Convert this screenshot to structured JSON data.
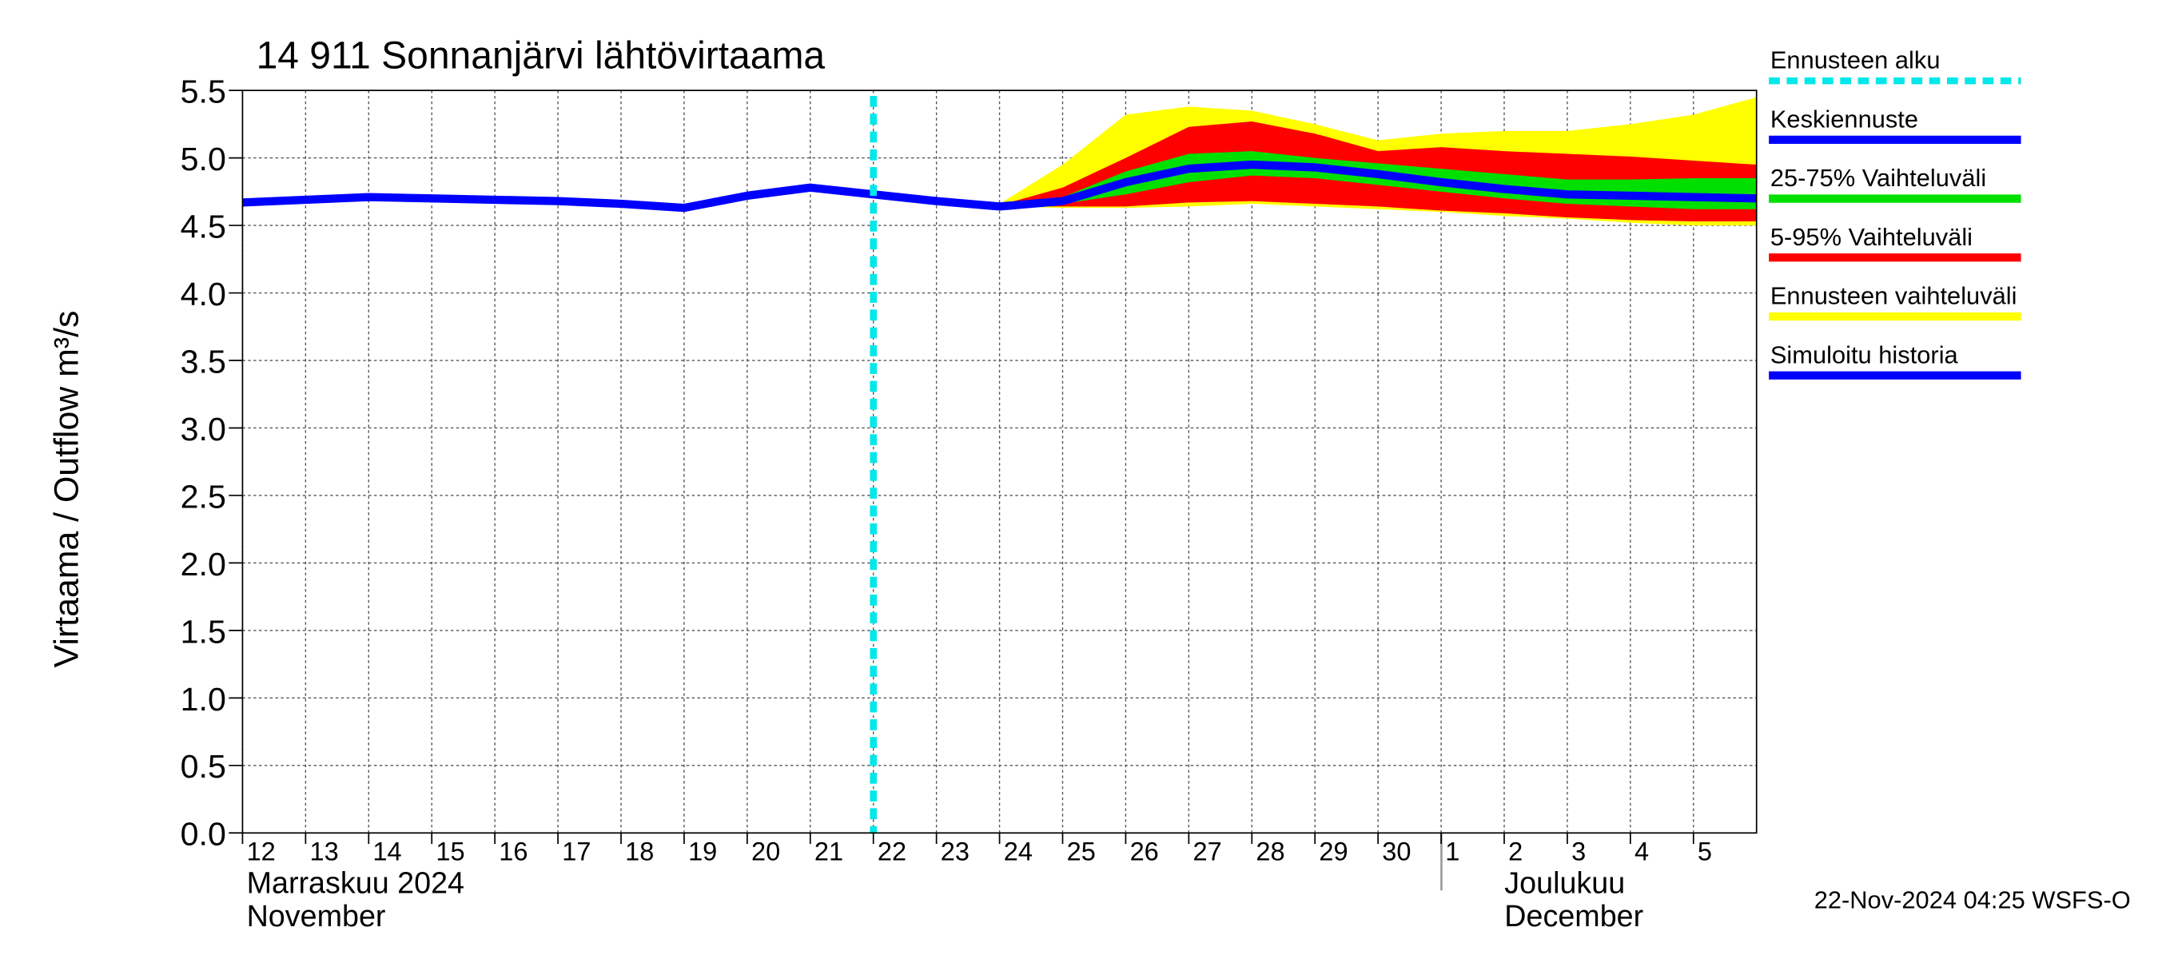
{
  "chart_data": {
    "type": "band-line",
    "title": "14 911 Sonnanjärvi lähtövirtaama",
    "y_label": "Virtaama / Outflow    m³/s",
    "x": [
      "2024-11-12",
      "2024-11-13",
      "2024-11-14",
      "2024-11-15",
      "2024-11-16",
      "2024-11-17",
      "2024-11-18",
      "2024-11-19",
      "2024-11-20",
      "2024-11-21",
      "2024-11-22",
      "2024-11-23",
      "2024-11-24",
      "2024-11-25",
      "2024-11-26",
      "2024-11-27",
      "2024-11-28",
      "2024-11-29",
      "2024-11-30",
      "2024-12-01",
      "2024-12-02",
      "2024-12-03",
      "2024-12-04",
      "2024-12-05",
      "2024-12-06"
    ],
    "xlim": [
      "2024-11-12",
      "2024-12-06"
    ],
    "xticks": [
      {
        "value": "2024-11-12",
        "label": "12"
      },
      {
        "value": "2024-11-13",
        "label": "13"
      },
      {
        "value": "2024-11-14",
        "label": "14"
      },
      {
        "value": "2024-11-15",
        "label": "15"
      },
      {
        "value": "2024-11-16",
        "label": "16"
      },
      {
        "value": "2024-11-17",
        "label": "17"
      },
      {
        "value": "2024-11-18",
        "label": "18"
      },
      {
        "value": "2024-11-19",
        "label": "19"
      },
      {
        "value": "2024-11-20",
        "label": "20"
      },
      {
        "value": "2024-11-21",
        "label": "21"
      },
      {
        "value": "2024-11-22",
        "label": "22"
      },
      {
        "value": "2024-11-23",
        "label": "23"
      },
      {
        "value": "2024-11-24",
        "label": "24"
      },
      {
        "value": "2024-11-25",
        "label": "25"
      },
      {
        "value": "2024-11-26",
        "label": "26"
      },
      {
        "value": "2024-11-27",
        "label": "27"
      },
      {
        "value": "2024-11-28",
        "label": "28"
      },
      {
        "value": "2024-11-29",
        "label": "29"
      },
      {
        "value": "2024-11-30",
        "label": "30"
      },
      {
        "value": "2024-12-01",
        "label": "1"
      },
      {
        "value": "2024-12-02",
        "label": "2"
      },
      {
        "value": "2024-12-03",
        "label": "3"
      },
      {
        "value": "2024-12-04",
        "label": "4"
      },
      {
        "value": "2024-12-05",
        "label": "5"
      }
    ],
    "month_labels": [
      [
        "Marraskuu 2024",
        "November"
      ],
      [
        "Joulukuu",
        "December"
      ]
    ],
    "ylim": [
      0,
      5.5
    ],
    "yticks": [
      {
        "value": 0,
        "label": "0.0"
      },
      0.5,
      {
        "value": 1,
        "label": "1.0"
      },
      1.5,
      {
        "value": 2,
        "label": "2.0"
      },
      2.5,
      {
        "value": 3,
        "label": "3.0"
      },
      3.5,
      {
        "value": 4,
        "label": "4.0"
      },
      4.5,
      {
        "value": 5,
        "label": "5.0"
      },
      5.5
    ],
    "grid": true,
    "series": [
      {
        "name": "Ennusteen alku",
        "color": "#00e8e8",
        "kind": "vline",
        "at": "2024-11-22"
      },
      {
        "name": "Keskiennuste",
        "color": "#0000ff",
        "kind": "line",
        "values": [
          null,
          null,
          null,
          null,
          null,
          null,
          null,
          null,
          null,
          null,
          4.73,
          4.68,
          4.64,
          4.68,
          4.82,
          4.92,
          4.95,
          4.93,
          4.88,
          4.82,
          4.77,
          4.73,
          4.72,
          4.71,
          4.7
        ]
      },
      {
        "name": "25-75% Vaihteluväli",
        "color": "#00e000",
        "kind": "band",
        "upper": [
          null,
          null,
          null,
          null,
          null,
          null,
          null,
          null,
          null,
          null,
          4.73,
          4.69,
          4.65,
          4.71,
          4.9,
          5.03,
          5.05,
          5.0,
          4.96,
          4.92,
          4.88,
          4.84,
          4.84,
          4.85,
          4.85
        ],
        "lower": [
          null,
          null,
          null,
          null,
          null,
          null,
          null,
          null,
          null,
          null,
          4.73,
          4.68,
          4.64,
          4.66,
          4.73,
          4.82,
          4.87,
          4.85,
          4.8,
          4.75,
          4.7,
          4.66,
          4.64,
          4.62,
          4.62
        ]
      },
      {
        "name": "5-95% Vaihteluväli",
        "color": "#ff0000",
        "kind": "band",
        "upper": [
          null,
          null,
          null,
          null,
          null,
          null,
          null,
          null,
          null,
          null,
          4.73,
          4.69,
          4.65,
          4.78,
          5.0,
          5.23,
          5.27,
          5.18,
          5.05,
          5.08,
          5.05,
          5.03,
          5.01,
          4.98,
          4.95
        ],
        "lower": [
          null,
          null,
          null,
          null,
          null,
          null,
          null,
          null,
          null,
          null,
          4.73,
          4.68,
          4.64,
          4.64,
          4.64,
          4.67,
          4.68,
          4.66,
          4.64,
          4.61,
          4.59,
          4.56,
          4.54,
          4.53,
          4.53
        ]
      },
      {
        "name": "Ennusteen vaihteluväli",
        "color": "#ffff00",
        "kind": "band",
        "upper": [
          null,
          null,
          null,
          null,
          null,
          null,
          null,
          null,
          null,
          null,
          4.73,
          4.7,
          4.66,
          4.95,
          5.32,
          5.38,
          5.35,
          5.25,
          5.13,
          5.18,
          5.2,
          5.2,
          5.25,
          5.32,
          5.45
        ],
        "lower": [
          null,
          null,
          null,
          null,
          null,
          null,
          null,
          null,
          null,
          null,
          4.73,
          4.68,
          4.64,
          4.63,
          4.63,
          4.64,
          4.66,
          4.64,
          4.62,
          4.6,
          4.57,
          4.55,
          4.52,
          4.5,
          4.5
        ]
      },
      {
        "name": "Simuloitu historia",
        "color": "#0000ff",
        "kind": "line",
        "values": [
          4.67,
          4.69,
          4.71,
          4.7,
          4.69,
          4.68,
          4.66,
          4.63,
          4.72,
          4.78,
          4.73,
          null,
          null,
          null,
          null,
          null,
          null,
          null,
          null,
          null,
          null,
          null,
          null,
          null,
          null
        ]
      }
    ],
    "footer": "22-Nov-2024 04:25 WSFS-O"
  }
}
